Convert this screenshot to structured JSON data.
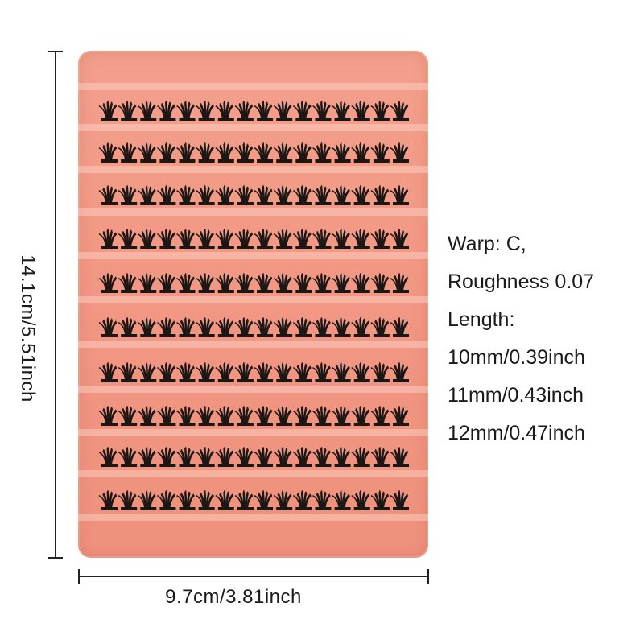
{
  "dimensions": {
    "height_label": "14.1cm/5.51inch",
    "width_label": "9.7cm/3.81inch"
  },
  "specs": {
    "curl": "Warp: C,",
    "thickness": "Roughness 0.07",
    "length_title": "Length:",
    "lengths": [
      "10mm/0.39inch",
      "11mm/0.43inch",
      "12mm/0.47inch"
    ]
  },
  "tray": {
    "color": "#f19783",
    "lash_color": "#1c1614",
    "rows": 10,
    "clusters_per_row": 16
  }
}
